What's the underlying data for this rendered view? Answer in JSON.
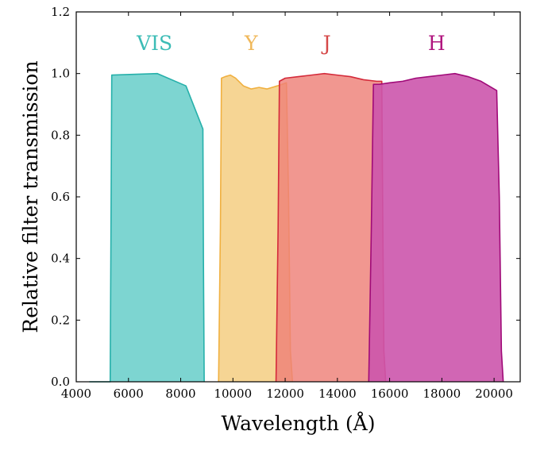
{
  "chart_data": {
    "type": "area",
    "xlabel": "Wavelength (Å)",
    "ylabel": "Relative filter transmission",
    "xlim": [
      4000,
      21000
    ],
    "ylim": [
      0,
      1.2
    ],
    "xticks": [
      4000,
      6000,
      8000,
      10000,
      12000,
      14000,
      16000,
      18000,
      20000
    ],
    "yticks": [
      0.0,
      0.2,
      0.4,
      0.6,
      0.8,
      1.0,
      1.2
    ],
    "xtick_labels": [
      "4000",
      "6000",
      "8000",
      "10000",
      "12000",
      "14000",
      "16000",
      "18000",
      "20000"
    ],
    "ytick_labels": [
      "0.0",
      "0.2",
      "0.4",
      "0.6",
      "0.8",
      "1.0",
      "1.2"
    ],
    "grid": false,
    "series": [
      {
        "name": "VIS",
        "fill": "#7dd5d1",
        "stroke": "#26b0aa",
        "label_color": "#3cbcb6",
        "label_x": 7000,
        "x": [
          4500,
          5300,
          5330,
          5360,
          7100,
          8200,
          8850,
          8870,
          8900
        ],
        "y": [
          0.0,
          0.0,
          0.5,
          0.995,
          1.0,
          0.96,
          0.82,
          0.4,
          0.0
        ]
      },
      {
        "name": "Y",
        "fill": "#f6d594",
        "stroke": "#f0b040",
        "label_color": "#f0b85a",
        "label_x": 10700,
        "x": [
          9450,
          9520,
          9560,
          9700,
          9900,
          10100,
          10400,
          10700,
          11000,
          11300,
          11700,
          12050,
          12130,
          12200,
          12280
        ],
        "y": [
          0.0,
          0.5,
          0.985,
          0.99,
          0.995,
          0.985,
          0.96,
          0.95,
          0.955,
          0.95,
          0.96,
          0.97,
          0.6,
          0.1,
          0.0
        ]
      },
      {
        "name": "J",
        "fill": "#ee8078",
        "fill_opacity": 0.82,
        "stroke": "#d42a3a",
        "label_color": "#d54848",
        "label_x": 13600,
        "x": [
          11650,
          11730,
          11780,
          12000,
          12500,
          13000,
          13500,
          14000,
          14500,
          15000,
          15500,
          15700,
          15740,
          15780,
          15850
        ],
        "y": [
          0.0,
          0.5,
          0.975,
          0.985,
          0.99,
          0.995,
          1.0,
          0.995,
          0.99,
          0.98,
          0.975,
          0.975,
          0.5,
          0.1,
          0.0
        ]
      },
      {
        "name": "H",
        "fill": "#cc55ac",
        "fill_opacity": 0.9,
        "stroke": "#a00a78",
        "label_color": "#b0157e",
        "label_x": 17800,
        "x": [
          15200,
          15300,
          15380,
          15600,
          16000,
          16500,
          17000,
          17500,
          18000,
          18500,
          19000,
          19500,
          19900,
          20100,
          20200,
          20280,
          20350
        ],
        "y": [
          0.0,
          0.5,
          0.965,
          0.965,
          0.97,
          0.975,
          0.985,
          0.99,
          0.995,
          1.0,
          0.99,
          0.975,
          0.955,
          0.945,
          0.6,
          0.1,
          0.0
        ]
      }
    ]
  }
}
